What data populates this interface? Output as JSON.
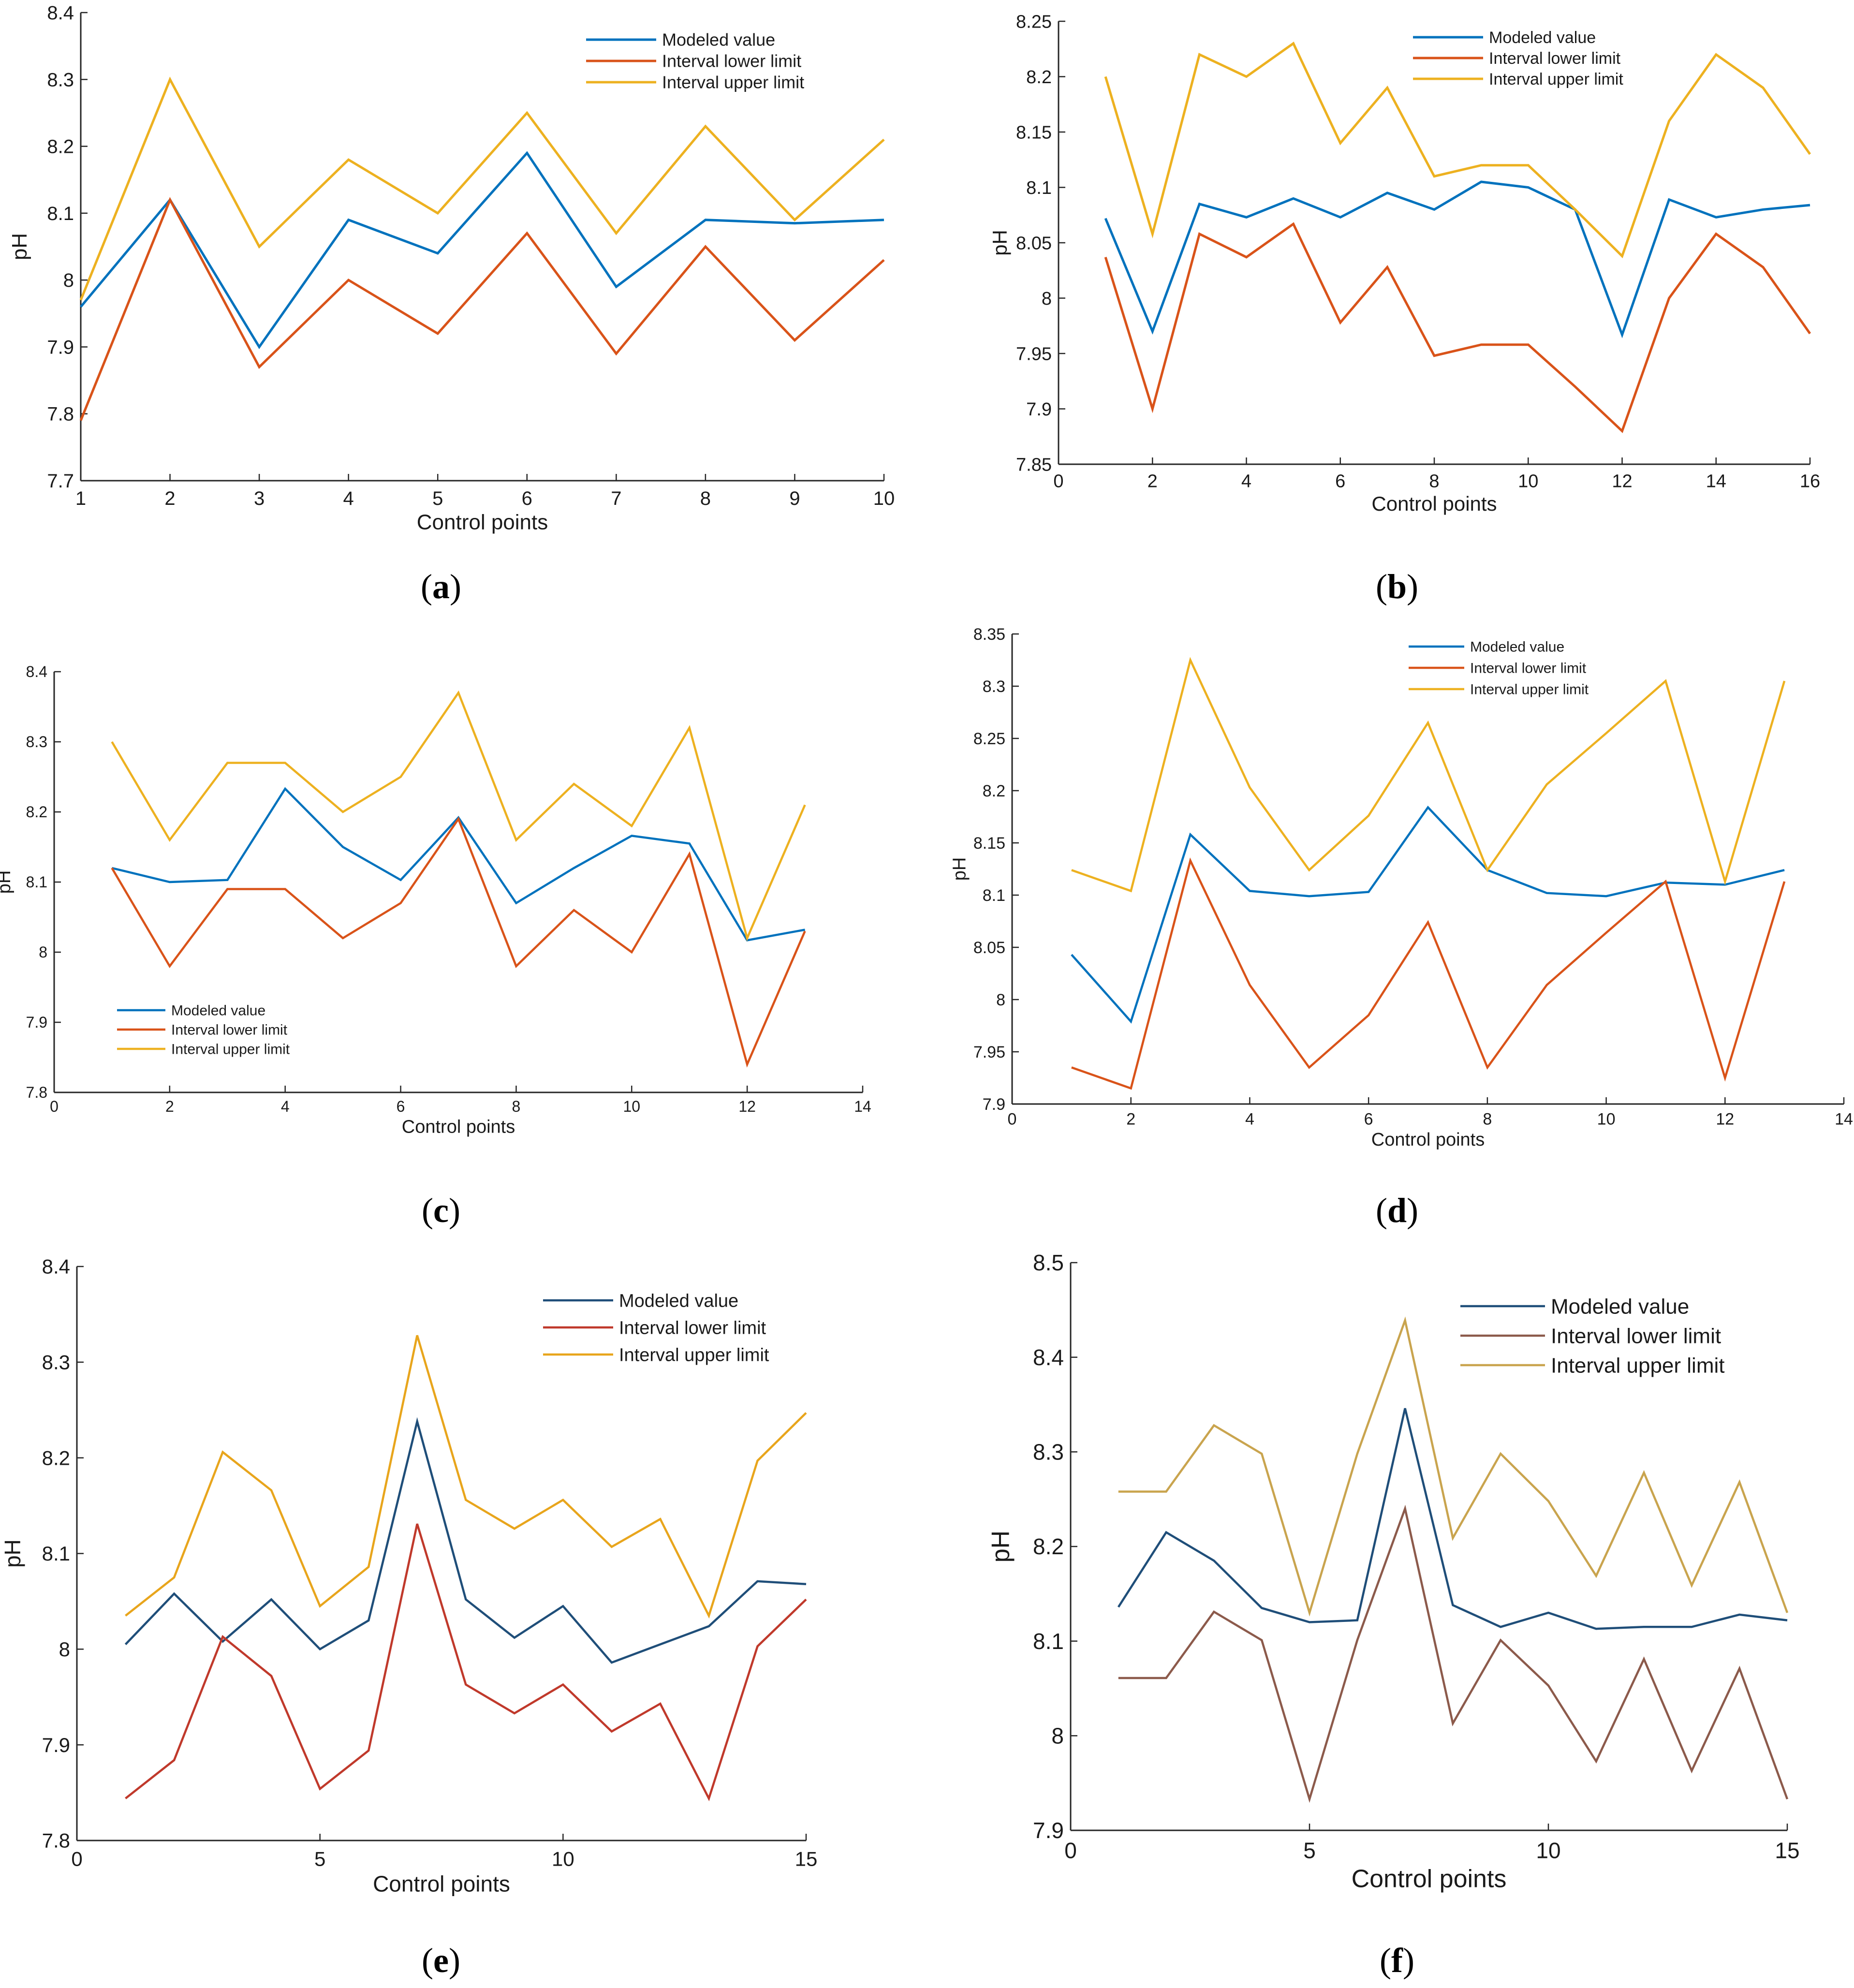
{
  "colors": {
    "blue": "#0072BD",
    "red": "#D95319",
    "yellow": "#EDB120",
    "blue_f": "#1f4e79",
    "red_f": "#8c5a4b",
    "yellow_f": "#c9a44e"
  },
  "chart_data": [
    {
      "type": "line",
      "panel_label": "a",
      "x": [
        1,
        2,
        3,
        4,
        5,
        6,
        7,
        8,
        9,
        10
      ],
      "xlim": [
        1,
        10
      ],
      "ylim": [
        7.7,
        8.4
      ],
      "xticks": [
        "1",
        "2",
        "3",
        "4",
        "5",
        "6",
        "7",
        "8",
        "9",
        "10"
      ],
      "yticks": [
        "7.7",
        "7.8",
        "7.9",
        "8",
        "8.1",
        "8.2",
        "8.3",
        "8.4"
      ],
      "xlabel": "Control points",
      "ylabel": "pH",
      "legend": "top-right",
      "series": [
        {
          "name": "Modeled value",
          "values": [
            7.96,
            8.12,
            7.9,
            8.09,
            8.04,
            8.19,
            7.99,
            8.09,
            8.085,
            8.09
          ]
        },
        {
          "name": "Interval lower limit",
          "values": [
            7.79,
            8.12,
            7.87,
            8.0,
            7.92,
            8.07,
            7.89,
            8.05,
            7.91,
            8.03
          ]
        },
        {
          "name": "Interval upper limit",
          "values": [
            7.97,
            8.3,
            8.05,
            8.18,
            8.1,
            8.25,
            8.07,
            8.23,
            8.09,
            8.21
          ]
        }
      ]
    },
    {
      "type": "line",
      "panel_label": "b",
      "x": [
        1,
        2,
        3,
        4,
        5,
        6,
        7,
        8,
        9,
        10,
        11,
        12,
        13,
        14,
        15,
        16
      ],
      "xlim": [
        0,
        16
      ],
      "ylim": [
        7.85,
        8.25
      ],
      "xticks": [
        "0",
        "2",
        "4",
        "6",
        "8",
        "10",
        "12",
        "14",
        "16"
      ],
      "yticks": [
        "7.85",
        "7.9",
        "7.95",
        "8",
        "8.05",
        "8.1",
        "8.15",
        "8.2",
        "8.25"
      ],
      "xlabel": "Control points",
      "ylabel": "pH",
      "legend": "top-right",
      "series": [
        {
          "name": "Modeled value",
          "values": [
            8.072,
            7.97,
            8.085,
            8.073,
            8.09,
            8.073,
            8.095,
            8.08,
            8.105,
            8.1,
            8.08,
            7.967,
            8.089,
            8.073,
            8.08,
            8.084
          ]
        },
        {
          "name": "Interval lower limit",
          "values": [
            8.037,
            7.9,
            8.058,
            8.037,
            8.067,
            7.978,
            8.028,
            7.948,
            7.958,
            7.958,
            7.92,
            7.88,
            8.0,
            8.058,
            8.028,
            7.968
          ]
        },
        {
          "name": "Interval upper limit",
          "values": [
            8.2,
            8.058,
            8.22,
            8.2,
            8.23,
            8.14,
            8.19,
            8.11,
            8.12,
            8.12,
            8.08,
            8.038,
            8.16,
            8.22,
            8.19,
            8.13
          ]
        }
      ]
    },
    {
      "type": "line",
      "panel_label": "c",
      "x": [
        1,
        2,
        3,
        4,
        5,
        6,
        7,
        8,
        9,
        10,
        11,
        12,
        13
      ],
      "xlim": [
        0,
        14
      ],
      "ylim": [
        7.8,
        8.4
      ],
      "xticks": [
        "0",
        "2",
        "4",
        "6",
        "8",
        "10",
        "12",
        "14"
      ],
      "yticks": [
        "7.8",
        "7.9",
        "8",
        "8.1",
        "8.2",
        "8.3",
        "8.4"
      ],
      "xlabel": "Control points",
      "ylabel": "pH",
      "legend": "bottom-left",
      "series": [
        {
          "name": "Modeled value",
          "values": [
            8.12,
            8.1,
            8.103,
            8.233,
            8.15,
            8.103,
            8.192,
            8.07,
            8.12,
            8.166,
            8.155,
            8.017,
            8.032
          ]
        },
        {
          "name": "Interval lower limit",
          "values": [
            8.12,
            7.98,
            8.09,
            8.09,
            8.02,
            8.07,
            8.19,
            7.98,
            8.06,
            8.0,
            8.14,
            7.84,
            8.03
          ]
        },
        {
          "name": "Interval upper limit",
          "values": [
            8.3,
            8.16,
            8.27,
            8.27,
            8.2,
            8.25,
            8.37,
            8.16,
            8.24,
            8.18,
            8.32,
            8.02,
            8.21
          ]
        }
      ]
    },
    {
      "type": "line",
      "panel_label": "d",
      "x": [
        1,
        2,
        3,
        4,
        5,
        6,
        7,
        8,
        9,
        10,
        11,
        12,
        13
      ],
      "xlim": [
        0,
        14
      ],
      "ylim": [
        7.9,
        8.35
      ],
      "xticks": [
        "0",
        "2",
        "4",
        "6",
        "8",
        "10",
        "12",
        "14"
      ],
      "yticks": [
        "7.9",
        "7.95",
        "8",
        "8.05",
        "8.1",
        "8.15",
        "8.2",
        "8.25",
        "8.3",
        "8.35"
      ],
      "xlabel": "Control points",
      "ylabel": "pH",
      "legend": "top-center",
      "series": [
        {
          "name": "Modeled value",
          "values": [
            8.043,
            7.979,
            8.158,
            8.104,
            8.099,
            8.103,
            8.184,
            8.124,
            8.102,
            8.099,
            8.112,
            8.11,
            8.124
          ]
        },
        {
          "name": "Interval lower limit",
          "values": [
            7.935,
            7.915,
            8.133,
            8.014,
            7.935,
            7.985,
            8.074,
            7.935,
            8.014,
            8.064,
            8.113,
            7.925,
            8.113
          ]
        },
        {
          "name": "Interval upper limit",
          "values": [
            8.124,
            8.104,
            8.325,
            8.203,
            8.124,
            8.176,
            8.265,
            8.124,
            8.206,
            8.255,
            8.305,
            8.113,
            8.305
          ]
        }
      ]
    },
    {
      "type": "line",
      "panel_label": "e",
      "x": [
        1,
        2,
        3,
        4,
        5,
        6,
        7,
        8,
        9,
        10,
        11,
        12,
        13,
        14,
        15
      ],
      "xlim": [
        0,
        15
      ],
      "ylim": [
        7.8,
        8.4
      ],
      "xticks": [
        "0",
        "5",
        "10",
        "15"
      ],
      "yticks": [
        "7.8",
        "7.9",
        "8",
        "8.1",
        "8.2",
        "8.3",
        "8.4"
      ],
      "xlabel": "Control points",
      "ylabel": "pH",
      "legend": "top-right",
      "series": [
        {
          "name": "Modeled value",
          "values": [
            8.005,
            8.058,
            8.008,
            8.052,
            8.0,
            8.03,
            8.238,
            8.052,
            8.012,
            8.045,
            7.986,
            8.005,
            8.024,
            8.071,
            8.068
          ]
        },
        {
          "name": "Interval lower limit",
          "values": [
            7.844,
            7.884,
            8.013,
            7.972,
            7.854,
            7.894,
            8.131,
            7.963,
            7.933,
            7.963,
            7.914,
            7.943,
            7.844,
            8.003,
            8.052
          ]
        },
        {
          "name": "Interval upper limit",
          "values": [
            8.035,
            8.075,
            8.206,
            8.166,
            8.045,
            8.086,
            8.328,
            8.156,
            8.126,
            8.156,
            8.107,
            8.136,
            8.035,
            8.197,
            8.247
          ]
        }
      ]
    },
    {
      "type": "line",
      "panel_label": "f",
      "x": [
        1,
        2,
        3,
        4,
        5,
        6,
        7,
        8,
        9,
        10,
        11,
        12,
        13,
        14,
        15
      ],
      "xlim": [
        0,
        15
      ],
      "ylim": [
        7.9,
        8.5
      ],
      "xticks": [
        "0",
        "5",
        "10",
        "15"
      ],
      "yticks": [
        "7.9",
        "8",
        "8.1",
        "8.2",
        "8.3",
        "8.4",
        "8.5"
      ],
      "xlabel": "Control points",
      "ylabel": "pH",
      "legend": "top-right",
      "series": [
        {
          "name": "Modeled value",
          "values": [
            8.136,
            8.215,
            8.185,
            8.135,
            8.12,
            8.122,
            8.346,
            8.138,
            8.115,
            8.13,
            8.113,
            8.115,
            8.115,
            8.128,
            8.122
          ]
        },
        {
          "name": "Interval lower limit",
          "values": [
            8.061,
            8.061,
            8.131,
            8.101,
            7.933,
            8.101,
            8.24,
            8.013,
            8.101,
            8.053,
            7.973,
            8.081,
            7.963,
            8.071,
            7.933
          ]
        },
        {
          "name": "Interval upper limit",
          "values": [
            8.258,
            8.258,
            8.328,
            8.298,
            8.13,
            8.298,
            8.439,
            8.209,
            8.298,
            8.248,
            8.169,
            8.278,
            8.159,
            8.268,
            8.13
          ]
        }
      ]
    }
  ]
}
